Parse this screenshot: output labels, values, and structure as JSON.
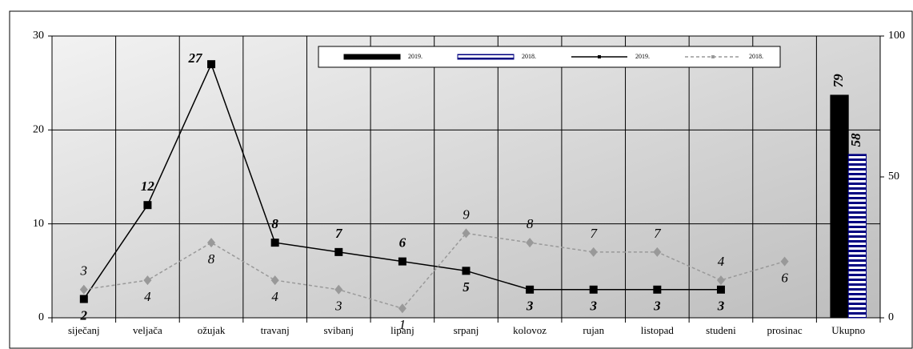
{
  "chart_data": {
    "type": "line",
    "categories": [
      "siječanj",
      "veljača",
      "ožujak",
      "travanj",
      "svibanj",
      "lipanj",
      "srpanj",
      "kolovoz",
      "rujan",
      "listopad",
      "studeni",
      "prosinac",
      "Ukupno"
    ],
    "series": [
      {
        "name": "2019.",
        "type": "bar",
        "axis": "y2",
        "color": "#000000",
        "values": [
          null,
          null,
          null,
          null,
          null,
          null,
          null,
          null,
          null,
          null,
          null,
          null,
          79
        ]
      },
      {
        "name": "2018.",
        "type": "bar",
        "axis": "y2",
        "color": "#000080",
        "striped": true,
        "values": [
          null,
          null,
          null,
          null,
          null,
          null,
          null,
          null,
          null,
          null,
          null,
          null,
          58
        ]
      },
      {
        "name": "2019.",
        "type": "line",
        "color": "#000000",
        "values": [
          2,
          12,
          27,
          8,
          7,
          6,
          5,
          3,
          3,
          3,
          3,
          null,
          null
        ]
      },
      {
        "name": "2018.",
        "type": "line",
        "color": "#999999",
        "dashed": true,
        "values": [
          3,
          4,
          8,
          4,
          3,
          1,
          9,
          8,
          7,
          7,
          4,
          6,
          null
        ]
      }
    ],
    "ylim": [
      0,
      30
    ],
    "yticks": [
      0,
      10,
      20,
      30
    ],
    "y2lim": [
      0,
      100
    ],
    "y2ticks": [
      0,
      50,
      100
    ],
    "grid": true
  }
}
